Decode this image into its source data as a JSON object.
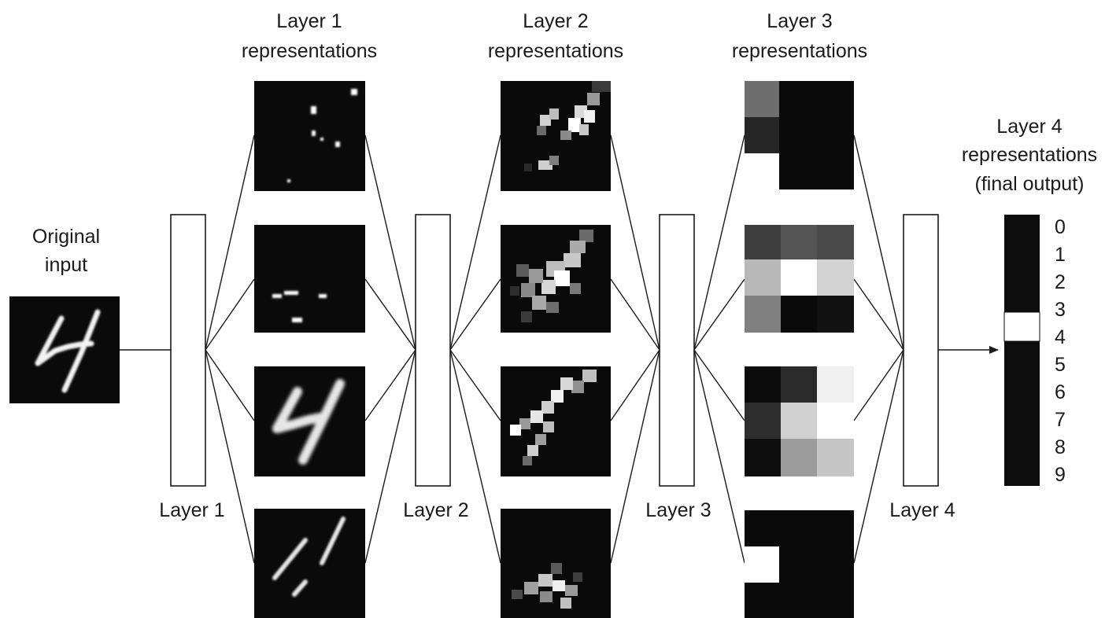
{
  "colors": {
    "background": "#ffffff",
    "panel": "#0a0a0a",
    "line": "#1a1a1a",
    "text": "#1a1a1a"
  },
  "input": {
    "label_line1": "Original",
    "label_line2": "input"
  },
  "layers": [
    {
      "label": "Layer 1"
    },
    {
      "label": "Layer 2"
    },
    {
      "label": "Layer 3"
    },
    {
      "label": "Layer 4"
    }
  ],
  "representations": [
    {
      "title_line1": "Layer 1",
      "title_line2": "representations"
    },
    {
      "title_line1": "Layer 2",
      "title_line2": "representations"
    },
    {
      "title_line1": "Layer 3",
      "title_line2": "representations"
    }
  ],
  "output": {
    "title_line1": "Layer 4",
    "title_line2": "representations",
    "title_line3": "(final output)",
    "classes": [
      "0",
      "1",
      "2",
      "3",
      "4",
      "5",
      "6",
      "7",
      "8",
      "9"
    ],
    "highlighted_class": "4"
  }
}
